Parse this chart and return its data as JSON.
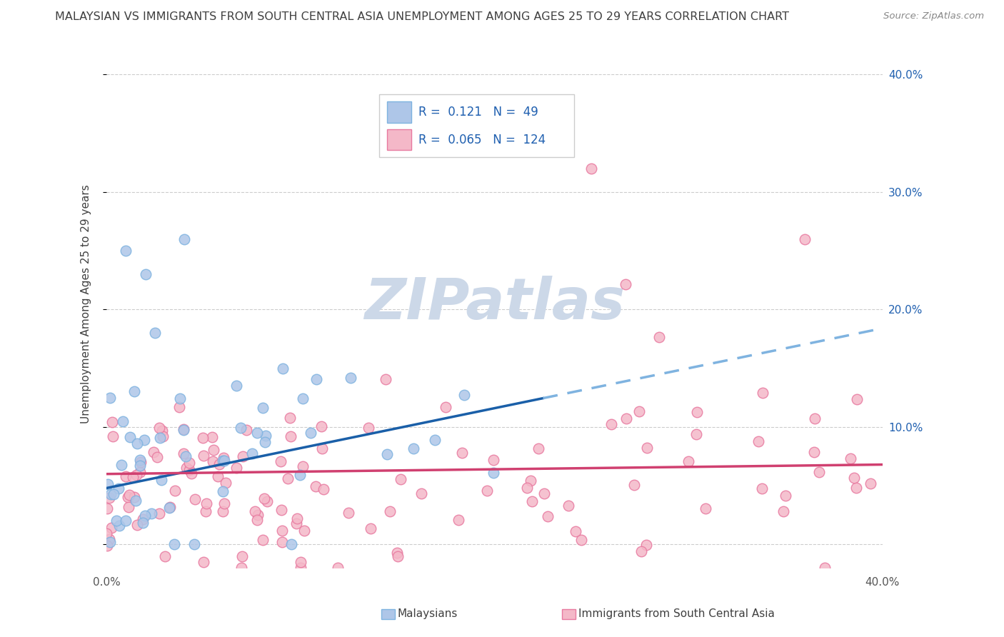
{
  "title": "MALAYSIAN VS IMMIGRANTS FROM SOUTH CENTRAL ASIA UNEMPLOYMENT AMONG AGES 25 TO 29 YEARS CORRELATION CHART",
  "source": "Source: ZipAtlas.com",
  "ylabel": "Unemployment Among Ages 25 to 29 years",
  "xlim": [
    0.0,
    0.4
  ],
  "ylim": [
    -0.02,
    0.43
  ],
  "ytick_vals": [
    0.0,
    0.1,
    0.2,
    0.3,
    0.4
  ],
  "xtick_vals": [
    0.0,
    0.1,
    0.2,
    0.3,
    0.4
  ],
  "watermark": "ZIPatlas",
  "mal_face_color": "#aec6e8",
  "mal_edge_color": "#7fb3e0",
  "mal_line_color": "#1a5fa8",
  "mal_line_ext_color": "#7fb3e0",
  "imm_face_color": "#f4b8c8",
  "imm_edge_color": "#e87aa0",
  "imm_line_color": "#d04070",
  "legend_label_malaysians": "Malaysians",
  "legend_label_immigrants": "Immigrants from South Central Asia",
  "background_color": "#ffffff",
  "watermark_color": "#ccd8e8",
  "title_color": "#404040",
  "axis_tick_color": "#2060b0",
  "legend_R_mal": "0.121",
  "legend_N_mal": "49",
  "legend_R_imm": "0.065",
  "legend_N_imm": "124"
}
